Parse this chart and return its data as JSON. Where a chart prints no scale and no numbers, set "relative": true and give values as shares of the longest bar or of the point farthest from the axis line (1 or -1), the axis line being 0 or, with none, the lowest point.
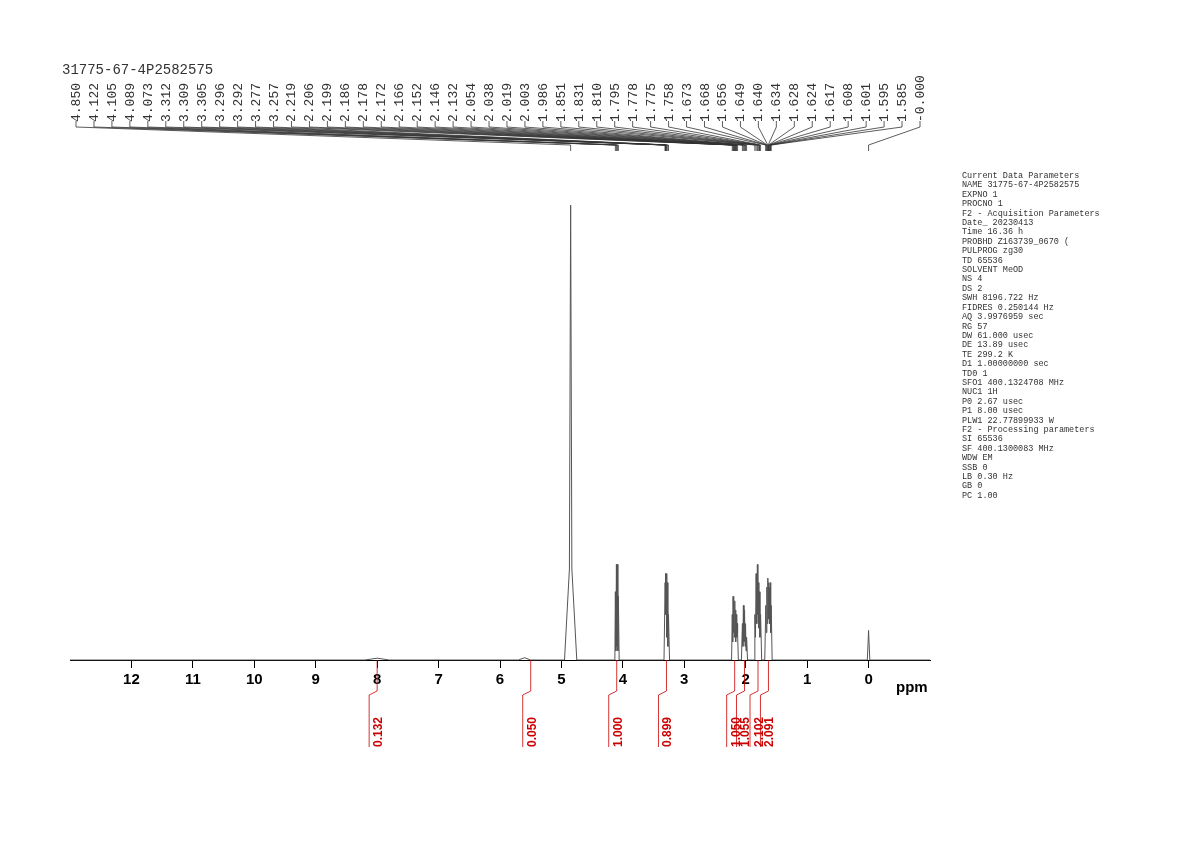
{
  "chart_data": {
    "type": "line",
    "title": "31775-67-4P2582575",
    "xlabel": "ppm",
    "relative": true,
    "xlim": [
      13,
      -1
    ],
    "xticks": [
      12,
      11,
      10,
      9,
      8,
      7,
      6,
      5,
      4,
      3,
      2,
      1,
      0
    ],
    "grid": false,
    "legend": false,
    "marker": "none",
    "line_style": "solid",
    "series": [
      {
        "color": "#555555",
        "x": [
          13,
          8.2,
          8.0,
          7.8,
          5.7,
          5.6,
          5.5,
          4.95,
          4.87,
          4.85,
          4.83,
          4.75,
          4.13,
          4.122,
          4.114,
          4.105,
          4.097,
          4.089,
          4.081,
          4.073,
          4.06,
          3.33,
          3.312,
          3.308,
          3.305,
          3.3,
          3.296,
          3.285,
          3.277,
          3.267,
          3.257,
          3.24,
          2.23,
          2.219,
          2.212,
          2.206,
          2.199,
          2.192,
          2.186,
          2.178,
          2.172,
          2.166,
          2.159,
          2.152,
          2.146,
          2.139,
          2.132,
          2.12,
          2.07,
          2.054,
          2.046,
          2.038,
          2.028,
          2.019,
          2.011,
          2.003,
          1.995,
          1.986,
          1.97,
          1.86,
          1.851,
          1.841,
          1.831,
          1.82,
          1.81,
          1.802,
          1.795,
          1.786,
          1.778,
          1.768,
          1.758,
          1.74,
          1.69,
          1.673,
          1.664,
          1.656,
          1.648,
          1.64,
          1.634,
          1.628,
          1.622,
          1.617,
          1.61,
          1.601,
          1.593,
          1.585,
          1.57,
          0.02,
          0,
          -0.02,
          -1
        ],
        "values": [
          0,
          0,
          0.004,
          0,
          0,
          0.005,
          0,
          0,
          0.2,
          1,
          0.2,
          0,
          0,
          0.15,
          0.02,
          0.21,
          0.03,
          0.21,
          0.02,
          0.14,
          0,
          0,
          0.17,
          0.1,
          0.19,
          0.1,
          0.19,
          0.05,
          0.17,
          0.03,
          0.1,
          0,
          0,
          0.1,
          0.04,
          0.14,
          0.06,
          0.12,
          0.05,
          0.13,
          0.06,
          0.11,
          0.04,
          0.1,
          0.05,
          0.08,
          0.06,
          0,
          0,
          0.08,
          0.03,
          0.12,
          0.04,
          0.11,
          0.03,
          0.08,
          0.02,
          0.05,
          0,
          0,
          0.1,
          0.05,
          0.19,
          0.08,
          0.21,
          0.1,
          0.17,
          0.07,
          0.15,
          0.05,
          0.1,
          0,
          0,
          0.12,
          0.06,
          0.16,
          0.08,
          0.18,
          0.1,
          0.17,
          0.09,
          0.16,
          0.08,
          0.17,
          0.06,
          0.12,
          0,
          0,
          0.065,
          0,
          0
        ]
      }
    ],
    "annotations": [
      {
        "text": "4.850",
        "x": 4.85
      },
      {
        "text": "4.122",
        "x": 4.122
      },
      {
        "text": "4.105",
        "x": 4.105
      },
      {
        "text": "4.089",
        "x": 4.089
      },
      {
        "text": "4.073",
        "x": 4.073
      },
      {
        "text": "3.312",
        "x": 3.312
      },
      {
        "text": "3.309",
        "x": 3.309
      },
      {
        "text": "3.305",
        "x": 3.305
      },
      {
        "text": "3.296",
        "x": 3.296
      },
      {
        "text": "3.292",
        "x": 3.292
      },
      {
        "text": "3.277",
        "x": 3.277
      },
      {
        "text": "3.257",
        "x": 3.257
      },
      {
        "text": "2.219",
        "x": 2.219
      },
      {
        "text": "2.206",
        "x": 2.206
      },
      {
        "text": "2.199",
        "x": 2.199
      },
      {
        "text": "2.186",
        "x": 2.186
      },
      {
        "text": "2.178",
        "x": 2.178
      },
      {
        "text": "2.172",
        "x": 2.172
      },
      {
        "text": "2.166",
        "x": 2.166
      },
      {
        "text": "2.152",
        "x": 2.152
      },
      {
        "text": "2.146",
        "x": 2.146
      },
      {
        "text": "2.132",
        "x": 2.132
      },
      {
        "text": "2.054",
        "x": 2.054
      },
      {
        "text": "2.038",
        "x": 2.038
      },
      {
        "text": "2.019",
        "x": 2.019
      },
      {
        "text": "2.003",
        "x": 2.003
      },
      {
        "text": "1.986",
        "x": 1.986
      },
      {
        "text": "1.851",
        "x": 1.851
      },
      {
        "text": "1.831",
        "x": 1.831
      },
      {
        "text": "1.810",
        "x": 1.81
      },
      {
        "text": "1.795",
        "x": 1.795
      },
      {
        "text": "1.778",
        "x": 1.778
      },
      {
        "text": "1.775",
        "x": 1.775
      },
      {
        "text": "1.758",
        "x": 1.758
      },
      {
        "text": "1.673",
        "x": 1.673
      },
      {
        "text": "1.668",
        "x": 1.668
      },
      {
        "text": "1.656",
        "x": 1.656
      },
      {
        "text": "1.649",
        "x": 1.649
      },
      {
        "text": "1.640",
        "x": 1.64
      },
      {
        "text": "1.634",
        "x": 1.634
      },
      {
        "text": "1.628",
        "x": 1.628
      },
      {
        "text": "1.624",
        "x": 1.624
      },
      {
        "text": "1.617",
        "x": 1.617
      },
      {
        "text": "1.608",
        "x": 1.608
      },
      {
        "text": "1.601",
        "x": 1.601
      },
      {
        "text": "1.595",
        "x": 1.595
      },
      {
        "text": "1.585",
        "x": 1.585
      },
      {
        "text": "-0.000",
        "x": 0
      },
      {
        "text": "0.132",
        "x": 8.0,
        "y": 0
      },
      {
        "text": "0.050",
        "x": 5.5,
        "y": 0
      },
      {
        "text": "1.000",
        "x": 4.1,
        "y": 0
      },
      {
        "text": "0.899",
        "x": 3.29,
        "y": 0
      },
      {
        "text": "1.050",
        "x": 2.18,
        "y": 0
      },
      {
        "text": "1.055",
        "x": 2.02,
        "y": 0
      },
      {
        "text": "2.102",
        "x": 1.8,
        "y": 0
      },
      {
        "text": "2.091",
        "x": 1.63,
        "y": 0
      },
      "Current Data Parameters",
      "NAME 31775-67-4P2582575",
      "EXPNO 1",
      "PROCNO 1",
      "F2 - Acquisition Parameters",
      "Date_ 20230413",
      "Time 16.36 h",
      "PROBHD Z163739_0670 (",
      "PULPROG zg30",
      "TD 65536",
      "SOLVENT MeOD",
      "NS 4",
      "DS 2",
      "SWH 8196.722 Hz",
      "FIDRES 0.250144 Hz",
      "AQ 3.9976959 sec",
      "RG 57",
      "DW 61.000 usec",
      "DE 13.89 usec",
      "TE 299.2 K",
      "D1 1.00000000 sec",
      "TD0 1",
      "SFO1 400.1324708 MHz",
      "NUC1 1H",
      "P0 2.67 usec",
      "P1 8.00 usec",
      "PLW1 22.77899933 W",
      "F2 - Processing parameters",
      "SI 65536",
      "SF 400.1300083 MHz",
      "WDW EM",
      "SSB 0",
      "LB 0.30 Hz",
      "GB 0",
      "PC 1.00"
    ]
  }
}
